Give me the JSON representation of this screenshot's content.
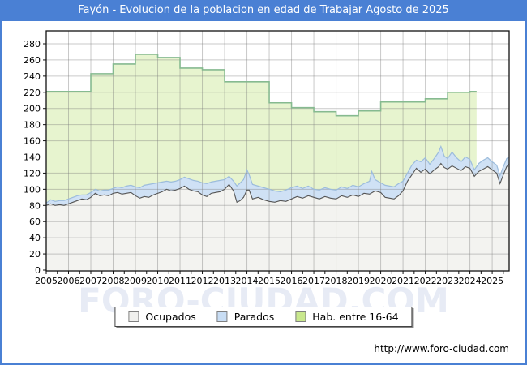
{
  "window": {
    "title": "Fayón - Evolucion de la poblacion en edad de Trabajar Agosto de 2025"
  },
  "watermark": "FORO-CIUDAD.COM",
  "footer": {
    "url": "http://www.foro-ciudad.com"
  },
  "colors": {
    "frame_blue": "#4a80d4",
    "grid": "#777777",
    "plot_border": "#111111",
    "hab_fill": "#e7f4cf",
    "hab_line": "#86ba90",
    "parados_fill": "#cfe1f5",
    "parados_line": "#9cbcdc",
    "ocupados_fill": "#f3f3f0",
    "ocupados_line": "#555555"
  },
  "legend": {
    "items": [
      {
        "label": "Ocupados",
        "swatch": "#f0f0ee"
      },
      {
        "label": "Parados",
        "swatch": "#c8ddf4"
      },
      {
        "label": "Hab. entre 16-64",
        "swatch": "#c9e88d"
      }
    ]
  },
  "chart_data": {
    "type": "area",
    "title": "Fayón - Evolucion de la poblacion en edad de Trabajar Agosto de 2025",
    "grid": true,
    "legend_position": "bottom",
    "x_axis": {
      "min": 2005,
      "max": 2025.76,
      "tick_step": 1,
      "minor_tick_step": 0.5,
      "tick_labels": [
        "2005",
        "2006",
        "2007",
        "2008",
        "2009",
        "2010",
        "2011",
        "2012",
        "2013",
        "2014",
        "2015",
        "2016",
        "2017",
        "2018",
        "2019",
        "2020",
        "2021",
        "2022",
        "2023",
        "2024",
        "2025"
      ]
    },
    "y_axis": {
      "min": 0,
      "max": 280,
      "step": 20
    },
    "series": [
      {
        "name": "Hab. entre 16-64",
        "style": "step-area",
        "years": [
          2005,
          2006,
          2007,
          2008,
          2009,
          2010,
          2011,
          2012,
          2013,
          2014,
          2015,
          2016,
          2017,
          2018,
          2019,
          2020,
          2021,
          2022,
          2023,
          2024
        ],
        "values": [
          221,
          221,
          243,
          255,
          267,
          263,
          250,
          248,
          233,
          233,
          207,
          201,
          196,
          191,
          197,
          208,
          208,
          212,
          220,
          221
        ],
        "end_x": 2024.3
      },
      {
        "name": "Parados",
        "style": "area",
        "note": "top edge = Ocupados + Parados (stacked band)",
        "points": [
          [
            2005.0,
            83
          ],
          [
            2005.2,
            87
          ],
          [
            2005.4,
            85
          ],
          [
            2005.6,
            86
          ],
          [
            2005.8,
            86
          ],
          [
            2006.0,
            88
          ],
          [
            2006.2,
            90
          ],
          [
            2006.4,
            92
          ],
          [
            2006.6,
            93
          ],
          [
            2006.8,
            93
          ],
          [
            2007.0,
            96
          ],
          [
            2007.2,
            100
          ],
          [
            2007.4,
            98
          ],
          [
            2007.6,
            99
          ],
          [
            2007.8,
            99
          ],
          [
            2008.0,
            101
          ],
          [
            2008.2,
            103
          ],
          [
            2008.4,
            102
          ],
          [
            2008.6,
            104
          ],
          [
            2008.8,
            105
          ],
          [
            2009.0,
            103
          ],
          [
            2009.2,
            102
          ],
          [
            2009.4,
            105
          ],
          [
            2009.6,
            106
          ],
          [
            2009.8,
            107
          ],
          [
            2010.0,
            108
          ],
          [
            2010.2,
            109
          ],
          [
            2010.4,
            110
          ],
          [
            2010.6,
            109
          ],
          [
            2010.8,
            110
          ],
          [
            2011.0,
            112
          ],
          [
            2011.2,
            115
          ],
          [
            2011.4,
            113
          ],
          [
            2011.6,
            111
          ],
          [
            2011.8,
            110
          ],
          [
            2012.0,
            108
          ],
          [
            2012.2,
            107
          ],
          [
            2012.4,
            109
          ],
          [
            2012.6,
            110
          ],
          [
            2012.8,
            111
          ],
          [
            2013.0,
            112
          ],
          [
            2013.2,
            116
          ],
          [
            2013.4,
            110
          ],
          [
            2013.55,
            104
          ],
          [
            2013.7,
            108
          ],
          [
            2013.85,
            112
          ],
          [
            2014.0,
            124
          ],
          [
            2014.1,
            118
          ],
          [
            2014.25,
            106
          ],
          [
            2014.5,
            104
          ],
          [
            2014.75,
            102
          ],
          [
            2015.0,
            100
          ],
          [
            2015.25,
            98
          ],
          [
            2015.5,
            97
          ],
          [
            2015.75,
            99
          ],
          [
            2016.0,
            102
          ],
          [
            2016.25,
            104
          ],
          [
            2016.5,
            101
          ],
          [
            2016.75,
            104
          ],
          [
            2017.0,
            100
          ],
          [
            2017.25,
            99
          ],
          [
            2017.5,
            102
          ],
          [
            2017.75,
            100
          ],
          [
            2018.0,
            99
          ],
          [
            2018.25,
            103
          ],
          [
            2018.5,
            101
          ],
          [
            2018.75,
            105
          ],
          [
            2019.0,
            103
          ],
          [
            2019.25,
            107
          ],
          [
            2019.5,
            110
          ],
          [
            2019.6,
            122
          ],
          [
            2019.75,
            112
          ],
          [
            2020.0,
            108
          ],
          [
            2020.2,
            105
          ],
          [
            2020.4,
            104
          ],
          [
            2020.6,
            103
          ],
          [
            2020.8,
            107
          ],
          [
            2021.0,
            110
          ],
          [
            2021.2,
            120
          ],
          [
            2021.4,
            130
          ],
          [
            2021.6,
            136
          ],
          [
            2021.8,
            134
          ],
          [
            2022.0,
            139
          ],
          [
            2022.2,
            131
          ],
          [
            2022.4,
            138
          ],
          [
            2022.6,
            146
          ],
          [
            2022.7,
            153
          ],
          [
            2022.85,
            141
          ],
          [
            2023.0,
            138
          ],
          [
            2023.2,
            146
          ],
          [
            2023.4,
            139
          ],
          [
            2023.6,
            134
          ],
          [
            2023.8,
            140
          ],
          [
            2024.0,
            137
          ],
          [
            2024.2,
            124
          ],
          [
            2024.4,
            132
          ],
          [
            2024.6,
            136
          ],
          [
            2024.8,
            139
          ],
          [
            2025.0,
            134
          ],
          [
            2025.2,
            130
          ],
          [
            2025.35,
            117
          ],
          [
            2025.5,
            128
          ],
          [
            2025.65,
            138
          ],
          [
            2025.76,
            140
          ]
        ]
      },
      {
        "name": "Ocupados",
        "style": "area",
        "points": [
          [
            2005.0,
            80
          ],
          [
            2005.2,
            82
          ],
          [
            2005.4,
            80
          ],
          [
            2005.6,
            81
          ],
          [
            2005.8,
            80
          ],
          [
            2006.0,
            82
          ],
          [
            2006.2,
            84
          ],
          [
            2006.4,
            86
          ],
          [
            2006.6,
            88
          ],
          [
            2006.8,
            87
          ],
          [
            2007.0,
            90
          ],
          [
            2007.2,
            95
          ],
          [
            2007.4,
            92
          ],
          [
            2007.6,
            93
          ],
          [
            2007.8,
            92
          ],
          [
            2008.0,
            95
          ],
          [
            2008.2,
            96
          ],
          [
            2008.4,
            94
          ],
          [
            2008.6,
            95
          ],
          [
            2008.8,
            96
          ],
          [
            2009.0,
            92
          ],
          [
            2009.2,
            89
          ],
          [
            2009.4,
            91
          ],
          [
            2009.6,
            90
          ],
          [
            2009.8,
            93
          ],
          [
            2010.0,
            95
          ],
          [
            2010.2,
            97
          ],
          [
            2010.4,
            100
          ],
          [
            2010.6,
            98
          ],
          [
            2010.8,
            99
          ],
          [
            2011.0,
            101
          ],
          [
            2011.2,
            104
          ],
          [
            2011.4,
            100
          ],
          [
            2011.6,
            98
          ],
          [
            2011.8,
            97
          ],
          [
            2012.0,
            93
          ],
          [
            2012.2,
            91
          ],
          [
            2012.4,
            95
          ],
          [
            2012.6,
            96
          ],
          [
            2012.8,
            97
          ],
          [
            2013.0,
            100
          ],
          [
            2013.2,
            106
          ],
          [
            2013.4,
            98
          ],
          [
            2013.55,
            84
          ],
          [
            2013.7,
            86
          ],
          [
            2013.85,
            90
          ],
          [
            2014.0,
            99
          ],
          [
            2014.1,
            99
          ],
          [
            2014.25,
            88
          ],
          [
            2014.5,
            90
          ],
          [
            2014.75,
            87
          ],
          [
            2015.0,
            85
          ],
          [
            2015.25,
            84
          ],
          [
            2015.5,
            86
          ],
          [
            2015.75,
            85
          ],
          [
            2016.0,
            88
          ],
          [
            2016.25,
            91
          ],
          [
            2016.5,
            89
          ],
          [
            2016.75,
            92
          ],
          [
            2017.0,
            90
          ],
          [
            2017.25,
            88
          ],
          [
            2017.5,
            91
          ],
          [
            2017.75,
            89
          ],
          [
            2018.0,
            88
          ],
          [
            2018.25,
            92
          ],
          [
            2018.5,
            90
          ],
          [
            2018.75,
            93
          ],
          [
            2019.0,
            91
          ],
          [
            2019.25,
            95
          ],
          [
            2019.5,
            94
          ],
          [
            2019.75,
            98
          ],
          [
            2020.0,
            96
          ],
          [
            2020.2,
            90
          ],
          [
            2020.4,
            89
          ],
          [
            2020.6,
            88
          ],
          [
            2020.8,
            92
          ],
          [
            2021.0,
            98
          ],
          [
            2021.2,
            110
          ],
          [
            2021.4,
            118
          ],
          [
            2021.6,
            126
          ],
          [
            2021.8,
            121
          ],
          [
            2022.0,
            125
          ],
          [
            2022.2,
            119
          ],
          [
            2022.4,
            124
          ],
          [
            2022.6,
            128
          ],
          [
            2022.7,
            132
          ],
          [
            2022.85,
            127
          ],
          [
            2023.0,
            125
          ],
          [
            2023.2,
            129
          ],
          [
            2023.4,
            126
          ],
          [
            2023.6,
            123
          ],
          [
            2023.8,
            128
          ],
          [
            2024.0,
            126
          ],
          [
            2024.2,
            116
          ],
          [
            2024.4,
            122
          ],
          [
            2024.6,
            125
          ],
          [
            2024.8,
            128
          ],
          [
            2025.0,
            124
          ],
          [
            2025.2,
            120
          ],
          [
            2025.35,
            107
          ],
          [
            2025.5,
            118
          ],
          [
            2025.65,
            128
          ],
          [
            2025.76,
            131
          ]
        ]
      }
    ]
  }
}
